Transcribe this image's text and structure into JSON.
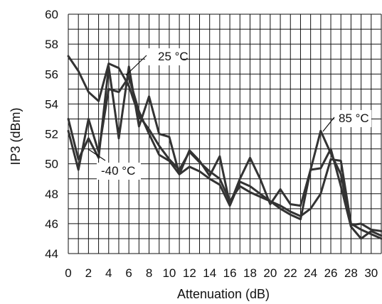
{
  "chart_data": {
    "type": "line",
    "xlabel": "Attenuation (dB)",
    "ylabel": "IP3 (dBm)",
    "xlim": [
      0,
      31
    ],
    "ylim": [
      44,
      60
    ],
    "grid": true,
    "x_ticks": [
      0,
      2,
      4,
      6,
      8,
      10,
      12,
      14,
      16,
      18,
      20,
      22,
      24,
      26,
      28,
      30
    ],
    "y_ticks": [
      44,
      46,
      48,
      50,
      52,
      54,
      56,
      58,
      60
    ],
    "annotations": [
      {
        "text": "25 °C",
        "series": 0
      },
      {
        "text": "85 °C",
        "series": 1
      },
      {
        "text": "-40 °C",
        "series": 2
      }
    ],
    "series": [
      {
        "x": [
          0,
          1,
          2,
          3,
          4,
          5,
          6,
          7,
          8,
          9,
          10,
          11,
          12,
          13,
          14,
          15,
          16,
          17,
          18,
          19,
          20,
          21,
          22,
          23,
          24,
          25,
          26,
          27,
          28,
          29,
          30,
          31
        ],
        "values": [
          57.2,
          56.2,
          54.8,
          54.2,
          56.7,
          56.4,
          55.2,
          53.2,
          52.3,
          51.2,
          50.3,
          49.6,
          50.8,
          50.1,
          49.5,
          49.0,
          47.5,
          48.5,
          48.1,
          47.8,
          47.5,
          47.2,
          46.8,
          46.5,
          47.0,
          48.0,
          50.3,
          50.2,
          46.0,
          45.6,
          45.3,
          45.0
        ]
      },
      {
        "x": [
          0,
          1,
          2,
          3,
          4,
          5,
          6,
          7,
          8,
          9,
          10,
          11,
          12,
          13,
          14,
          15,
          16,
          17,
          18,
          19,
          20,
          21,
          22,
          23,
          24,
          25,
          26,
          27,
          28,
          29,
          30,
          31
        ],
        "values": [
          53.0,
          50.3,
          51.7,
          50.4,
          56.5,
          51.7,
          56.5,
          52.5,
          54.5,
          52.0,
          51.8,
          49.3,
          50.9,
          50.2,
          49.2,
          50.5,
          47.3,
          49.0,
          50.4,
          49.0,
          47.3,
          48.3,
          47.3,
          47.2,
          49.6,
          52.2,
          50.7,
          49.3,
          45.9,
          46.0,
          45.6,
          45.5
        ]
      },
      {
        "x": [
          0,
          1,
          2,
          3,
          4,
          5,
          6,
          7,
          8,
          9,
          10,
          11,
          12,
          13,
          14,
          15,
          16,
          17,
          18,
          19,
          20,
          21,
          22,
          23,
          24,
          25,
          26,
          27,
          28,
          29,
          30,
          31
        ],
        "values": [
          52.2,
          49.6,
          53.0,
          50.8,
          55.0,
          54.8,
          55.8,
          53.5,
          52.0,
          50.6,
          50.2,
          49.3,
          49.8,
          49.5,
          49.0,
          48.6,
          47.2,
          48.8,
          48.5,
          48.0,
          47.5,
          47.0,
          46.6,
          46.3,
          49.6,
          49.7,
          51.0,
          48.5,
          45.8,
          45.0,
          45.5,
          45.2
        ]
      }
    ]
  }
}
